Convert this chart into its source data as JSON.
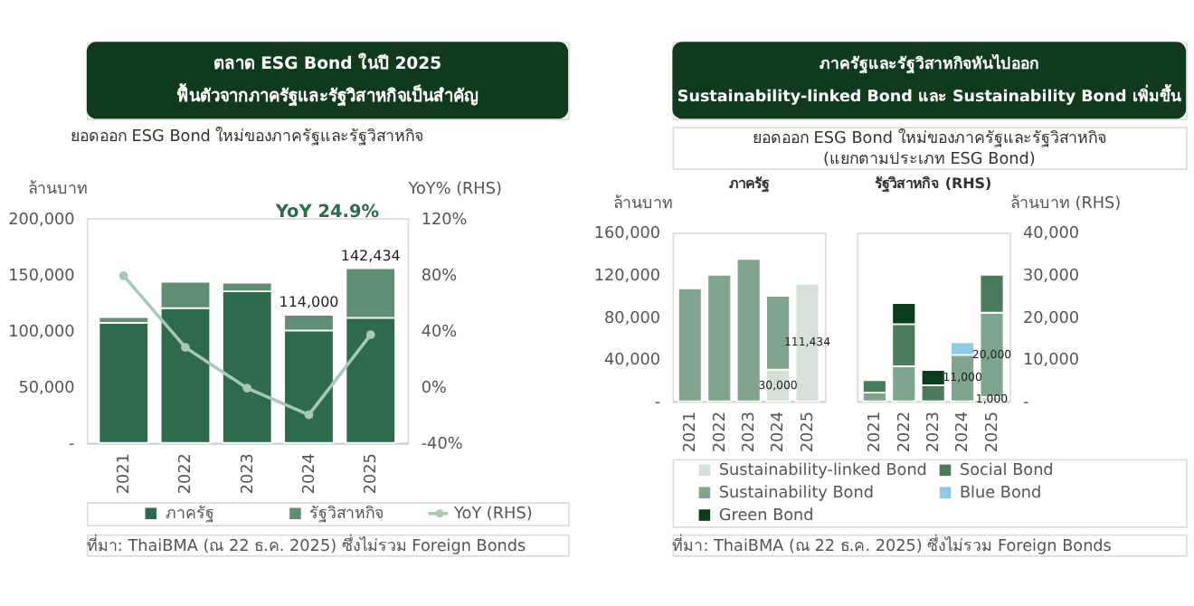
{
  "chart_data": [
    {
      "type": "bar",
      "title": "ตลาด ESG Bond ในปี 2025",
      "subtitle": "ฟื้นตัวจากภาครัฐและรัฐวิสาหกิจเป็นสำคัญ",
      "ylabel": "ล้านบาท",
      "y2label": "YoY% (RHS)",
      "annotations": [
        "ยอดออก ESG Bond ใหม่ของภาครัฐและรัฐวิสาหกิจ",
        "YoY 24.9%",
        {
          "text": "114,000",
          "x": "2024",
          "y": 114000
        },
        "142,434",
        "ที่มา: ThaiBMA (ณ 22 ธ.ค. 2025) ซึ่งไม่รวม Foreign Bonds"
      ],
      "categories": [
        "2021",
        "2022",
        "2023",
        "2024",
        "2025"
      ],
      "stacked": true,
      "series": [
        {
          "name": "ภาครัฐ",
          "color": "#2e6b4a",
          "values": [
            107000,
            120000,
            135000,
            100000,
            111434
          ]
        },
        {
          "name": "รัฐวิสาหกิจ",
          "color": "#5f8f72",
          "values": [
            5000,
            23400,
            7500,
            14000,
            44000
          ]
        },
        {
          "name": "YoY (RHS)",
          "type": "line",
          "axis": "y2",
          "color": "#a8c8b4",
          "values": [
            79,
            28,
            -1,
            -20,
            37
          ]
        }
      ],
      "ylim": [
        0,
        200000
      ],
      "yticks": [
        {
          "value": 0,
          "label": "-"
        },
        {
          "value": 50000,
          "label": "50,000"
        },
        {
          "value": 100000,
          "label": "100,000"
        },
        {
          "value": 150000,
          "label": "150,000"
        },
        {
          "value": 200000,
          "label": "200,000"
        }
      ],
      "y2lim": [
        -40,
        120
      ],
      "y2ticks": [
        {
          "value": -40,
          "label": "-40%"
        },
        {
          "value": 0,
          "label": "0%"
        },
        {
          "value": 40,
          "label": "40%"
        },
        {
          "value": 80,
          "label": "80%"
        },
        {
          "value": 120,
          "label": "120%"
        }
      ],
      "marker": "circle",
      "line_style": "solid",
      "legend": "bottom",
      "grid": false
    },
    {
      "type": "bar",
      "title": "ภาครัฐ",
      "ylabel": "ล้านบาท",
      "annotations": [
        "ภาครัฐและรัฐวิสาหกิจหันไปออก",
        "Sustainability-linked Bond และ Sustainability Bond เพิ่มขึ้น",
        "ยอดออก ESG Bond ใหม่ของภาครัฐและรัฐวิสาหกิจ",
        "(แยกตามประเภท ESG Bond)",
        "ที่มา: ThaiBMA (ณ 22 ธ.ค. 2025) ซึ่งไม่รวม Foreign Bonds"
      ],
      "categories": [
        "2021",
        "2022",
        "2023",
        "2024",
        "2025"
      ],
      "stacked": true,
      "series": [
        {
          "name": "Sustainability-linked Bond",
          "color": "#d5e0d8",
          "values": [
            null,
            null,
            null,
            30000,
            111434
          ],
          "value_labels": [
            null,
            null,
            null,
            "30,000",
            "111,434"
          ]
        },
        {
          "name": "Sustainability Bond",
          "color": "#7fa58c",
          "values": [
            107000,
            120000,
            135000,
            70000,
            null
          ]
        },
        {
          "name": "Green Bond",
          "color": "#0b3d1d",
          "values": [
            null,
            null,
            null,
            null,
            null
          ]
        }
      ],
      "ylim": [
        0,
        160000
      ],
      "yticks": [
        {
          "value": 0,
          "label": "-"
        },
        {
          "value": 40000,
          "label": "40,000"
        },
        {
          "value": 80000,
          "label": "80,000"
        },
        {
          "value": 120000,
          "label": "120,000"
        },
        {
          "value": 160000,
          "label": "160,000"
        }
      ],
      "legend": "bottom",
      "grid": false
    },
    {
      "type": "bar",
      "title": "รัฐวิสาหกิจ (RHS)",
      "y2label": "ล้านบาท (RHS)",
      "categories": [
        "2021",
        "2022",
        "2023",
        "2024",
        "2025"
      ],
      "stacked": true,
      "series": [
        {
          "color": "#d5e0d8",
          "axis": "y2",
          "values": [
            null,
            null,
            null,
            null,
            1000
          ],
          "value_labels": [
            null,
            null,
            null,
            null,
            "1,000"
          ]
        },
        {
          "color": "#7fa58c",
          "axis": "y2",
          "values": [
            2000,
            8300,
            null,
            11000,
            20000
          ],
          "value_labels": [
            null,
            null,
            null,
            "11,000",
            "20,000"
          ]
        },
        {
          "name": "Social Bond",
          "color": "#4a7c5c",
          "axis": "y2",
          "values": [
            3000,
            10000,
            3800,
            null,
            9000
          ]
        },
        {
          "color": "#0b3d1d",
          "axis": "y2",
          "values": [
            null,
            5000,
            3600,
            null,
            null
          ]
        },
        {
          "name": "Blue Bond",
          "color": "#8ecae6",
          "axis": "y2",
          "values": [
            null,
            null,
            null,
            3000,
            null
          ]
        }
      ],
      "y2lim": [
        0,
        40000
      ],
      "y2ticks": [
        {
          "value": 0,
          "label": "-"
        },
        {
          "value": 10000,
          "label": "10,000"
        },
        {
          "value": 20000,
          "label": "20,000"
        },
        {
          "value": 30000,
          "label": "30,000"
        },
        {
          "value": 40000,
          "label": "40,000"
        }
      ],
      "legend": "bottom",
      "grid": false
    }
  ]
}
